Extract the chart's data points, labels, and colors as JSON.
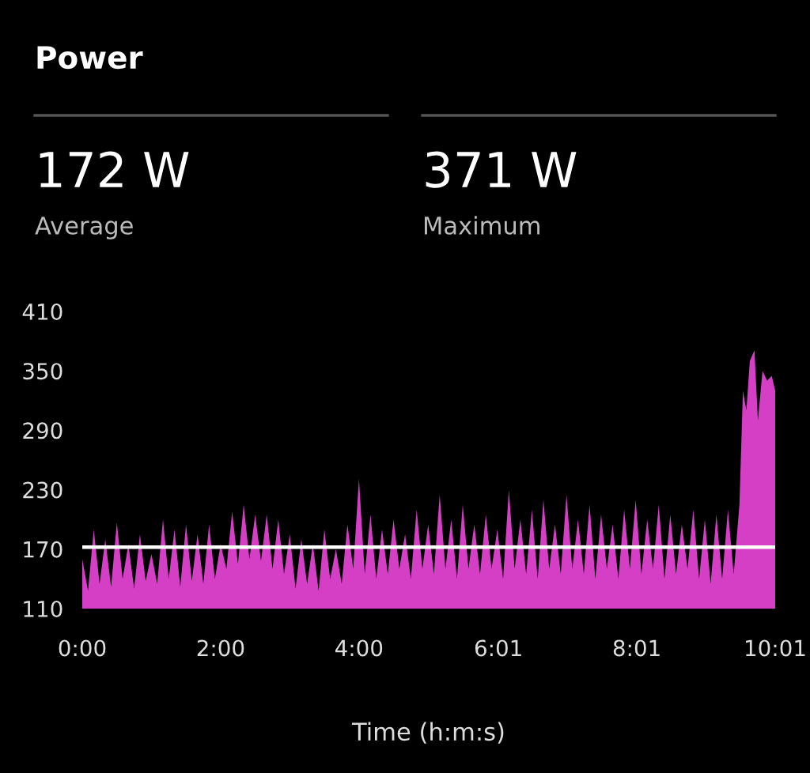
{
  "chart_data": {
    "type": "area",
    "title": "Power",
    "xlabel": "Time (h:m:s)",
    "annotations": [
      "172 W",
      "Average",
      "371 W",
      "Maximum"
    ],
    "x": [
      0,
      5,
      10,
      15,
      20,
      25,
      30,
      35,
      40,
      45,
      50,
      55,
      60,
      65,
      70,
      75,
      80,
      85,
      90,
      95,
      100,
      105,
      110,
      115,
      120,
      125,
      130,
      135,
      140,
      145,
      150,
      155,
      160,
      165,
      170,
      175,
      180,
      185,
      190,
      195,
      200,
      205,
      210,
      215,
      220,
      225,
      230,
      235,
      240,
      245,
      250,
      255,
      260,
      265,
      270,
      275,
      280,
      285,
      290,
      295,
      300,
      305,
      310,
      315,
      320,
      325,
      330,
      335,
      340,
      345,
      350,
      355,
      360,
      365,
      370,
      375,
      380,
      385,
      390,
      395,
      400,
      405,
      410,
      415,
      420,
      425,
      430,
      435,
      440,
      445,
      450,
      455,
      460,
      465,
      470,
      475,
      480,
      485,
      490,
      495,
      500,
      505,
      510,
      515,
      520,
      525,
      530,
      535,
      540,
      545,
      550,
      555,
      560,
      565,
      570,
      573,
      576,
      579,
      583,
      586,
      590,
      594,
      598,
      601
    ],
    "series": [
      {
        "color": "#d43fc6",
        "values": [
          160,
          128,
          190,
          135,
          180,
          132,
          197,
          140,
          175,
          130,
          185,
          138,
          165,
          135,
          200,
          140,
          190,
          132,
          195,
          138,
          185,
          135,
          195,
          140,
          175,
          150,
          208,
          155,
          215,
          160,
          205,
          158,
          205,
          150,
          200,
          145,
          185,
          130,
          180,
          135,
          175,
          128,
          190,
          140,
          170,
          135,
          195,
          150,
          241,
          145,
          205,
          140,
          190,
          145,
          200,
          150,
          185,
          140,
          210,
          150,
          195,
          145,
          225,
          150,
          200,
          140,
          215,
          150,
          195,
          145,
          205,
          150,
          190,
          140,
          230,
          150,
          200,
          145,
          210,
          140,
          220,
          150,
          195,
          145,
          225,
          150,
          200,
          145,
          215,
          140,
          205,
          150,
          195,
          140,
          210,
          150,
          220,
          145,
          200,
          150,
          215,
          140,
          205,
          145,
          195,
          150,
          210,
          140,
          200,
          135,
          205,
          140,
          210,
          145,
          215,
          330,
          310,
          360,
          371,
          300,
          350,
          340,
          345,
          330
        ]
      }
    ],
    "xlim": [
      0,
      601
    ],
    "xticks": [
      {
        "value": 0,
        "label": "0:00"
      },
      {
        "value": 120,
        "label": "2:00"
      },
      {
        "value": 240,
        "label": "4:00"
      },
      {
        "value": 361,
        "label": "6:01"
      },
      {
        "value": 481,
        "label": "8:01"
      },
      {
        "value": 601,
        "label": "10:01"
      }
    ],
    "ylim": [
      110,
      410
    ],
    "yticks": [
      110,
      170,
      230,
      290,
      350,
      410
    ],
    "ref_lines": [
      {
        "axis": "y",
        "value": 172,
        "color": "#ffffff"
      }
    ],
    "grid": false,
    "legend": false
  }
}
